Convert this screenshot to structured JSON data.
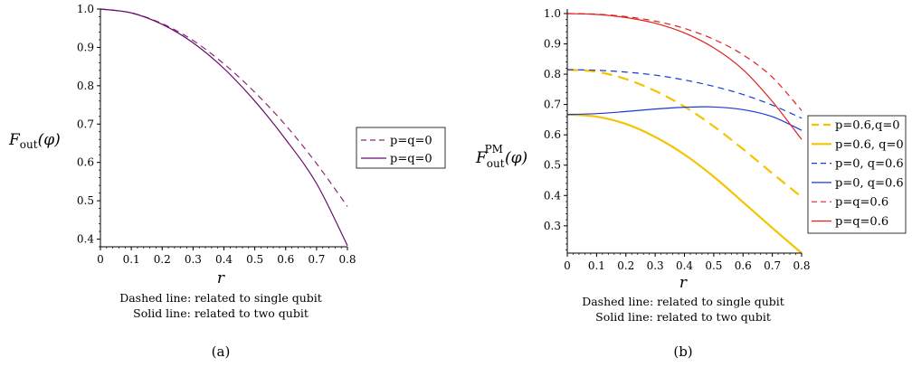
{
  "charts": [
    {
      "id": "a",
      "ylabel_main": "F",
      "ylabel_sub": "out",
      "ylabel_arg": "(φ)",
      "xlabel": "r",
      "xticks": [
        "0",
        "0.1",
        "0.2",
        "0.3",
        "0.4",
        "0.5",
        "0.6",
        "0.7",
        "0.8"
      ],
      "yticks": [
        "0.4",
        "0.5",
        "0.6",
        "0.7",
        "0.8",
        "0.9",
        "1.0"
      ],
      "note1": "Dashed line: related to single qubit",
      "note2": "Solid line: related to two qubit",
      "caption": "(a)",
      "legend": [
        {
          "label": "p=q=0",
          "style": "dash",
          "color": "#8b2a7c"
        },
        {
          "label": "p=q=0",
          "style": "solid",
          "color": "#6a0a6a"
        }
      ]
    },
    {
      "id": "b",
      "ylabel_main": "F",
      "ylabel_sub": "out",
      "ylabel_sup": "PM",
      "ylabel_arg": "(φ)",
      "xlabel": "r",
      "xticks": [
        "0",
        "0.1",
        "0.2",
        "0.3",
        "0.4",
        "0.5",
        "0.6",
        "0.7",
        "0.8"
      ],
      "yticks": [
        "0.3",
        "0.4",
        "0.5",
        "0.6",
        "0.7",
        "0.8",
        "0.9",
        "1.0"
      ],
      "note1": "Dashed line: related to single qubit",
      "note2": "Solid line: related to two qubit",
      "caption": "(b)",
      "legend": [
        {
          "label": "p=0.6,q=0",
          "style": "dash",
          "color": "#f5c400"
        },
        {
          "label": "p=0.6, q=0",
          "style": "solid",
          "color": "#f5c400"
        },
        {
          "label": "p=0, q=0.6",
          "style": "dash",
          "color": "#1a3ad6"
        },
        {
          "label": "p=0, q=0.6",
          "style": "solid",
          "color": "#1a3ad6"
        },
        {
          "label": "p=q=0.6",
          "style": "dash",
          "color": "#e02020"
        },
        {
          "label": "p=q=0.6",
          "style": "solid",
          "color": "#e02020"
        }
      ]
    }
  ],
  "chart_data": [
    {
      "type": "line",
      "title": "",
      "xlabel": "r",
      "ylabel": "F_out(φ)",
      "xlim": [
        0,
        0.8
      ],
      "ylim": [
        0.38,
        1.0
      ],
      "x": [
        0,
        0.1,
        0.2,
        0.3,
        0.4,
        0.5,
        0.6,
        0.7,
        0.8
      ],
      "series": [
        {
          "name": "p=q=0",
          "style": "dashed",
          "color": "#8b2a7c",
          "values": [
            1.0,
            0.99,
            0.962,
            0.918,
            0.857,
            0.783,
            0.697,
            0.597,
            0.485
          ]
        },
        {
          "name": "p=q=0",
          "style": "solid",
          "color": "#6a0a6a",
          "values": [
            1.0,
            0.99,
            0.96,
            0.912,
            0.845,
            0.76,
            0.66,
            0.545,
            0.383
          ]
        }
      ],
      "legend_position": "right",
      "grid": false
    },
    {
      "type": "line",
      "title": "",
      "xlabel": "r",
      "ylabel": "F_out^PM(φ)",
      "xlim": [
        0,
        0.8
      ],
      "ylim": [
        0.21,
        1.0
      ],
      "x": [
        0,
        0.1,
        0.2,
        0.3,
        0.4,
        0.5,
        0.6,
        0.7,
        0.8
      ],
      "series": [
        {
          "name": "p=0.6,q=0",
          "style": "dashed",
          "color": "#f5c400",
          "values": [
            0.815,
            0.808,
            0.784,
            0.745,
            0.693,
            0.628,
            0.553,
            0.473,
            0.395
          ]
        },
        {
          "name": "p=0.6, q=0",
          "style": "solid",
          "color": "#f5c400",
          "values": [
            0.667,
            0.66,
            0.636,
            0.593,
            0.535,
            0.462,
            0.378,
            0.293,
            0.21
          ]
        },
        {
          "name": "p=0, q=0.6",
          "style": "dashed",
          "color": "#1a3ad6",
          "values": [
            0.815,
            0.813,
            0.807,
            0.797,
            0.781,
            0.76,
            0.733,
            0.698,
            0.655
          ]
        },
        {
          "name": "p=0, q=0.6",
          "style": "solid",
          "color": "#1a3ad6",
          "values": [
            0.667,
            0.67,
            0.677,
            0.685,
            0.691,
            0.692,
            0.683,
            0.66,
            0.615
          ]
        },
        {
          "name": "p=q=0.6",
          "style": "dashed",
          "color": "#e02020",
          "values": [
            1.0,
            0.998,
            0.99,
            0.975,
            0.951,
            0.915,
            0.864,
            0.79,
            0.68
          ]
        },
        {
          "name": "p=q=0.6",
          "style": "solid",
          "color": "#e02020",
          "values": [
            1.0,
            0.997,
            0.987,
            0.968,
            0.936,
            0.887,
            0.815,
            0.71,
            0.585
          ]
        }
      ],
      "legend_position": "right",
      "grid": false
    }
  ]
}
